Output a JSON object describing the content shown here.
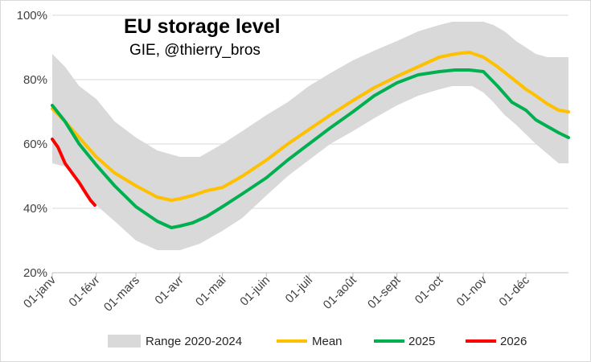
{
  "chart_data": {
    "type": "line",
    "title": "EU storage level",
    "subtitle": "GIE, @thierry_bros",
    "xlabel": "",
    "ylabel": "",
    "x_unit": "day of year",
    "ylim": [
      20,
      100
    ],
    "y_ticks": [
      "20%",
      "40%",
      "60%",
      "80%",
      "100%"
    ],
    "y_tick_values": [
      20,
      40,
      60,
      80,
      100
    ],
    "x_ticks": [
      "01-janv",
      "01-févr",
      "01-mars",
      "01-avr",
      "01-mai",
      "01-juin",
      "01-juil",
      "01-août",
      "01-sept",
      "01-oct",
      "01-nov",
      "01-déc"
    ],
    "x_tick_days": [
      1,
      32,
      60,
      91,
      121,
      152,
      182,
      213,
      244,
      274,
      305,
      335
    ],
    "grid": "horizontal",
    "legend_position": "bottom",
    "colors": {
      "range": "#d9d9d9",
      "mean": "#ffc000",
      "y2025": "#00b050",
      "y2026": "#ff0000",
      "grid": "#d9d9d9",
      "axis": "#bfbfbf"
    },
    "range": {
      "name": "Range 2020-2024",
      "x": [
        1,
        10,
        20,
        32,
        45,
        60,
        75,
        91,
        105,
        121,
        135,
        152,
        167,
        182,
        197,
        213,
        228,
        244,
        259,
        274,
        283,
        290,
        297,
        305,
        312,
        320,
        328,
        335,
        342,
        350,
        358,
        365
      ],
      "upper": [
        88,
        84,
        78,
        74,
        67,
        62,
        58,
        56,
        56,
        60,
        64,
        69,
        73,
        78,
        82,
        86,
        89,
        92,
        95,
        97,
        98,
        98,
        98,
        98,
        97,
        95,
        92,
        90,
        88,
        87,
        87,
        87
      ],
      "lower": [
        54,
        53,
        48,
        41,
        36,
        30,
        27,
        27,
        29,
        33,
        37,
        44,
        50,
        55,
        60,
        64,
        68,
        72,
        75,
        77,
        78,
        78,
        78,
        76,
        73,
        69,
        66,
        63,
        60,
        57,
        54,
        54
      ]
    },
    "series": [
      {
        "name": "Mean",
        "x": [
          1,
          10,
          20,
          32,
          45,
          60,
          75,
          85,
          91,
          100,
          110,
          121,
          135,
          152,
          167,
          182,
          197,
          213,
          228,
          244,
          259,
          274,
          285,
          295,
          305,
          315,
          325,
          335,
          342,
          350,
          358,
          365
        ],
        "values": [
          71,
          67,
          62,
          56,
          51,
          47,
          43.5,
          42.5,
          43,
          44,
          45.5,
          46.5,
          50,
          55,
          60,
          64.5,
          69,
          73.5,
          77.5,
          81,
          84,
          87,
          88,
          88.5,
          87,
          84,
          80.5,
          77,
          75,
          72.5,
          70.5,
          70
        ]
      },
      {
        "name": "2025",
        "x": [
          1,
          10,
          20,
          32,
          45,
          60,
          75,
          85,
          91,
          100,
          110,
          121,
          135,
          152,
          167,
          182,
          197,
          213,
          228,
          244,
          259,
          274,
          285,
          295,
          305,
          315,
          325,
          335,
          342,
          350,
          358,
          365
        ],
        "values": [
          72,
          67,
          60,
          53.5,
          47,
          40.5,
          36,
          34,
          34.5,
          35.5,
          37.5,
          40.5,
          44.5,
          49.5,
          55,
          60,
          65,
          70,
          75,
          79,
          81.5,
          82.5,
          83,
          83,
          82.5,
          78,
          73,
          70.5,
          67.5,
          65.5,
          63.5,
          62
        ]
      },
      {
        "name": "2026",
        "x": [
          1,
          5,
          10,
          15,
          20,
          25,
          28,
          31
        ],
        "values": [
          61.5,
          59,
          54,
          51,
          48,
          44.5,
          42.5,
          41
        ]
      }
    ]
  }
}
